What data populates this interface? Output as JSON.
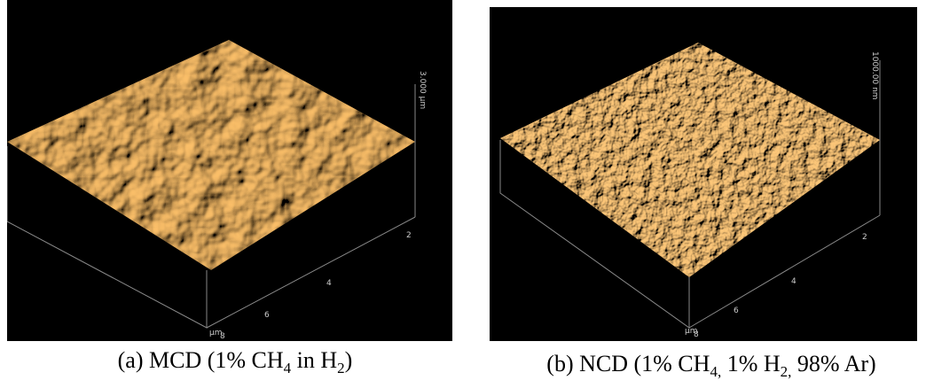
{
  "figures": [
    {
      "caption": [
        {
          "text": "(a) MCD (1% CH"
        },
        {
          "sub": "4"
        },
        {
          "text": " in H"
        },
        {
          "sub": "2"
        },
        {
          "text": ")"
        }
      ],
      "axis_labels": [
        "2",
        "4",
        "6",
        "8",
        "µm",
        "3.000 µm"
      ]
    },
    {
      "caption": [
        {
          "text": "(b) NCD (1% CH"
        },
        {
          "sub": "4,"
        },
        {
          "text": " 1% H"
        },
        {
          "sub": "2,"
        },
        {
          "text": " 98% Ar)"
        }
      ],
      "axis_labels": [
        "2",
        "4",
        "6",
        "8",
        "µm",
        "1000.00 nm"
      ]
    }
  ]
}
